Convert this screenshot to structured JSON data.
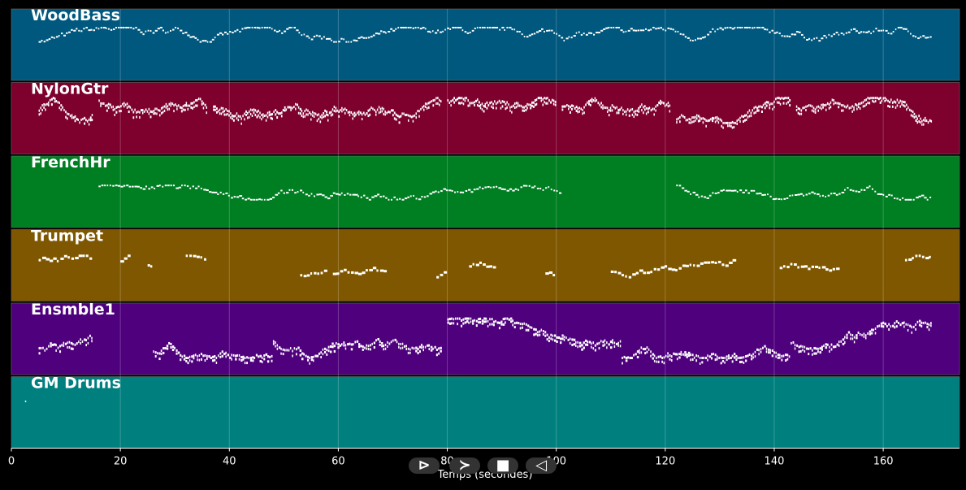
{
  "chart_data": {
    "type": "piano-roll",
    "xlabel": "Temps (secondes)",
    "xlim": [
      0,
      174
    ],
    "x_ticks": [
      0,
      20,
      40,
      60,
      80,
      100,
      120,
      140,
      160
    ],
    "grid": true,
    "tracks": [
      {
        "name": "WoodBass",
        "color": "#00587e",
        "density": 1,
        "thickness": 2,
        "segments": [
          [
            5,
            169
          ]
        ],
        "pitch_range": [
          0.55,
          0.75
        ]
      },
      {
        "name": "NylonGtr",
        "color": "#7d002d",
        "density": 1.6,
        "thickness": 3,
        "segments": [
          [
            5,
            15
          ],
          [
            16,
            36
          ],
          [
            37,
            58
          ],
          [
            58,
            79
          ],
          [
            80,
            100
          ],
          [
            101,
            121
          ],
          [
            122,
            143
          ],
          [
            144,
            169
          ]
        ],
        "pitch_range": [
          0.45,
          0.8
        ]
      },
      {
        "name": "FrenchHr",
        "color": "#007e22",
        "density": 0.9,
        "thickness": 2,
        "segments": [
          [
            16,
            101
          ],
          [
            122,
            169
          ]
        ],
        "pitch_range": [
          0.4,
          0.6
        ]
      },
      {
        "name": "Trumpet",
        "color": "#7f5700",
        "density": 0.7,
        "thickness": 3,
        "segments": [
          [
            5,
            15
          ],
          [
            20,
            22
          ],
          [
            25,
            26
          ],
          [
            32,
            36
          ],
          [
            53,
            58
          ],
          [
            59,
            69
          ],
          [
            78,
            80
          ],
          [
            84,
            89
          ],
          [
            98,
            100
          ],
          [
            110,
            133
          ],
          [
            141,
            152
          ],
          [
            164,
            169
          ]
        ],
        "pitch_range": [
          0.35,
          0.65
        ]
      },
      {
        "name": "Ensmble1",
        "color": "#4f007d",
        "density": 1.3,
        "thickness": 3,
        "segments": [
          [
            5,
            15
          ],
          [
            26,
            48
          ],
          [
            48,
            79
          ],
          [
            80,
            101
          ],
          [
            101,
            112
          ],
          [
            112,
            143
          ],
          [
            143,
            169
          ]
        ],
        "pitch_range": [
          0.25,
          0.8
        ]
      },
      {
        "name": "GM Drums",
        "color": "#007f7f",
        "density": 0,
        "thickness": 2,
        "segments": [
          [
            2.5,
            2.7
          ]
        ],
        "pitch_range": [
          0.65,
          0.7
        ]
      }
    ]
  },
  "controls": {
    "buttons": [
      {
        "name": "rewind-button",
        "glyph": "⊳",
        "label": "rewind"
      },
      {
        "name": "play-button",
        "glyph": "≻",
        "label": "play"
      },
      {
        "name": "stop-button",
        "glyph": "■",
        "label": "stop"
      },
      {
        "name": "back-button",
        "glyph": "◁",
        "label": "back"
      }
    ]
  }
}
